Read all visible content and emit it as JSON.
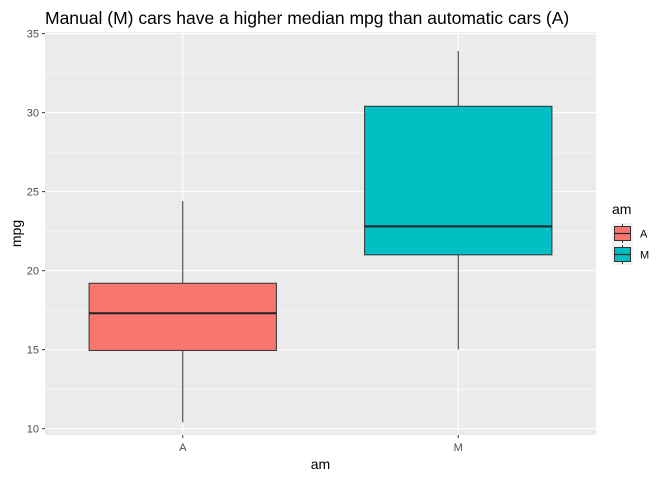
{
  "chart_data": {
    "type": "boxplot",
    "title": "Manual (M) cars have a higher median mpg than automatic cars (A)",
    "xlabel": "am",
    "ylabel": "mpg",
    "categories": [
      "A",
      "M"
    ],
    "ylim": [
      9.6,
      35.1
    ],
    "yticks": [
      10,
      15,
      20,
      25,
      30,
      35
    ],
    "grid": true,
    "legend": {
      "title": "am",
      "position": "right",
      "entries": [
        "A",
        "M"
      ]
    },
    "series": [
      {
        "category": "A",
        "color": "#F8766D",
        "min": 10.4,
        "q1": 14.95,
        "median": 17.3,
        "q3": 19.2,
        "max": 24.4
      },
      {
        "category": "M",
        "color": "#00BFC4",
        "min": 15.0,
        "q1": 21.0,
        "median": 22.8,
        "q3": 30.4,
        "max": 33.9
      }
    ]
  },
  "theme": {
    "panel_bg": "#EBEBEB",
    "grid_major": "#FFFFFF",
    "box_outline": "#333333"
  }
}
